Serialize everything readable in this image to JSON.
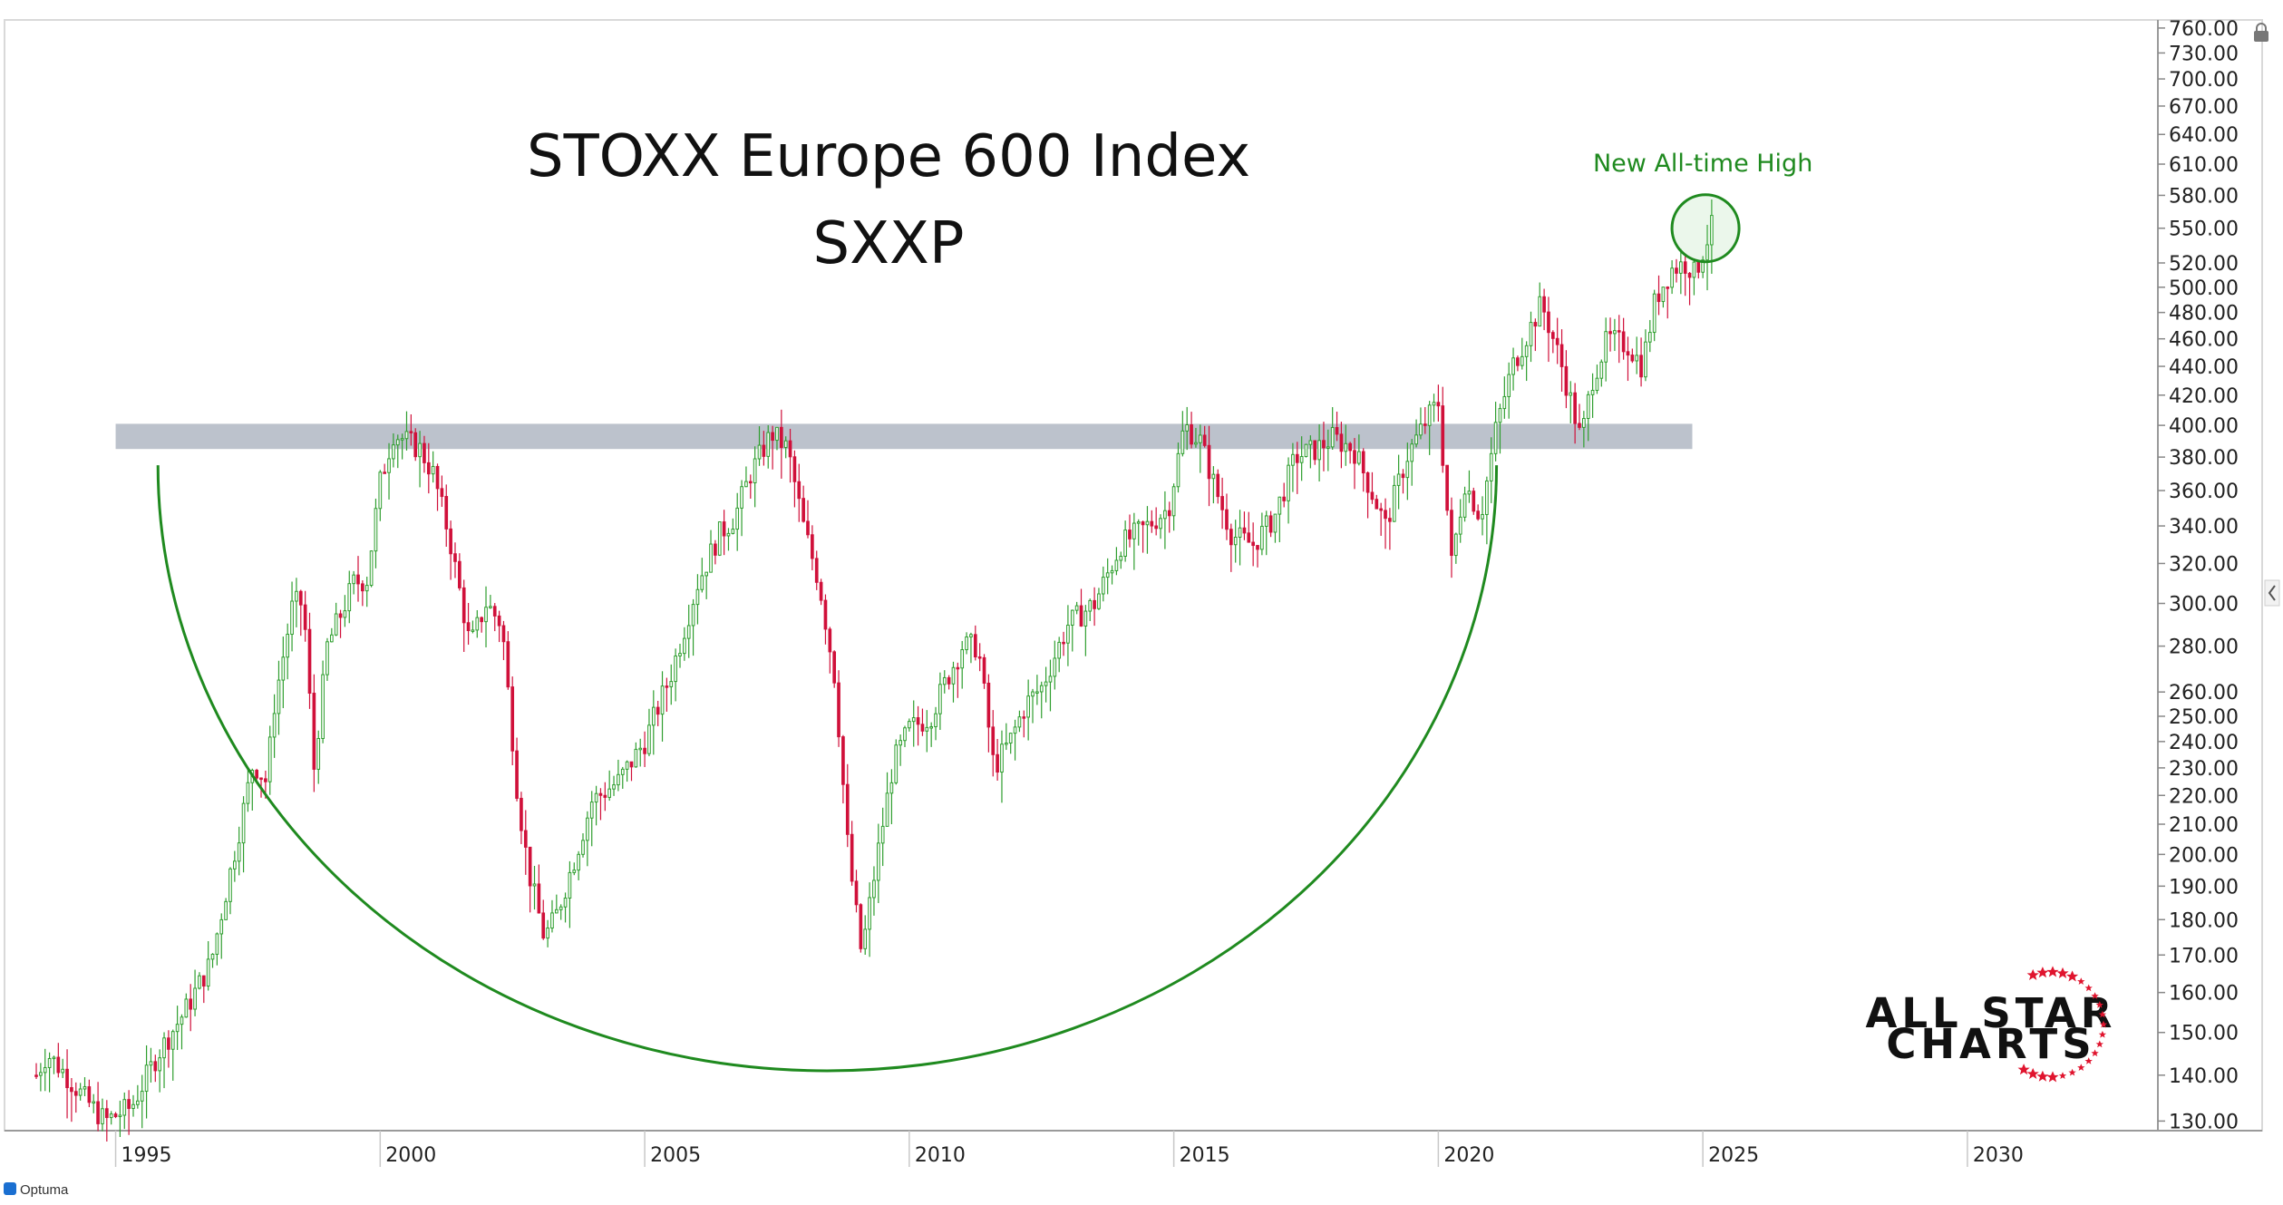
{
  "chart_data": {
    "type": "candlestick",
    "title": "STOXX Europe 600 Index",
    "subtitle": "SXXP",
    "y_scale": "log",
    "ylim": [
      128,
      770
    ],
    "xlim": [
      1992.9,
      2033.6
    ],
    "yticks": [
      130,
      140,
      150,
      160,
      170,
      180,
      190,
      200,
      210,
      220,
      230,
      240,
      250,
      260,
      280,
      300,
      320,
      340,
      360,
      380,
      400,
      420,
      440,
      460,
      480,
      500,
      520,
      550,
      580,
      610,
      640,
      670,
      700,
      730,
      760
    ],
    "ytick_labels": [
      "130.00",
      "140.00",
      "150.00",
      "160.00",
      "170.00",
      "180.00",
      "190.00",
      "200.00",
      "210.00",
      "220.00",
      "230.00",
      "240.00",
      "250.00",
      "260.00",
      "280.00",
      "300.00",
      "320.00",
      "340.00",
      "360.00",
      "380.00",
      "400.00",
      "420.00",
      "440.00",
      "460.00",
      "480.00",
      "500.00",
      "520.00",
      "550.00",
      "580.00",
      "610.00",
      "640.00",
      "670.00",
      "700.00",
      "730.00",
      "760.00"
    ],
    "xticks": [
      1995,
      2000,
      2005,
      2010,
      2015,
      2020,
      2025,
      2030
    ],
    "xtick_labels": [
      "1995",
      "2000",
      "2005",
      "2010",
      "2015",
      "2020",
      "2025",
      "2030"
    ],
    "grid": false,
    "up_color": "#2e9e2e",
    "down_color": "#d0103a",
    "approx_monthly_closes": [
      {
        "x": 1993.5,
        "y": 140
      },
      {
        "x": 1993.7,
        "y": 145
      },
      {
        "x": 1994.0,
        "y": 141
      },
      {
        "x": 1994.4,
        "y": 135
      },
      {
        "x": 1994.8,
        "y": 130
      },
      {
        "x": 1995.3,
        "y": 133
      },
      {
        "x": 1995.8,
        "y": 145
      },
      {
        "x": 1996.3,
        "y": 155
      },
      {
        "x": 1996.8,
        "y": 168
      },
      {
        "x": 1997.3,
        "y": 205
      },
      {
        "x": 1997.6,
        "y": 232
      },
      {
        "x": 1997.85,
        "y": 225
      },
      {
        "x": 1998.0,
        "y": 255
      },
      {
        "x": 1998.35,
        "y": 300
      },
      {
        "x": 1998.55,
        "y": 300
      },
      {
        "x": 1998.75,
        "y": 230
      },
      {
        "x": 1999.0,
        "y": 280
      },
      {
        "x": 1999.5,
        "y": 310
      },
      {
        "x": 1999.75,
        "y": 312
      },
      {
        "x": 2000.0,
        "y": 365
      },
      {
        "x": 2000.25,
        "y": 395
      },
      {
        "x": 2000.5,
        "y": 390
      },
      {
        "x": 2000.75,
        "y": 385
      },
      {
        "x": 2001.0,
        "y": 370
      },
      {
        "x": 2001.3,
        "y": 335
      },
      {
        "x": 2001.7,
        "y": 280
      },
      {
        "x": 2002.0,
        "y": 300
      },
      {
        "x": 2002.3,
        "y": 290
      },
      {
        "x": 2002.6,
        "y": 220
      },
      {
        "x": 2002.8,
        "y": 195
      },
      {
        "x": 2003.1,
        "y": 175
      },
      {
        "x": 2003.3,
        "y": 180
      },
      {
        "x": 2003.7,
        "y": 200
      },
      {
        "x": 2004.0,
        "y": 218
      },
      {
        "x": 2004.5,
        "y": 225
      },
      {
        "x": 2005.0,
        "y": 240
      },
      {
        "x": 2005.5,
        "y": 268
      },
      {
        "x": 2006.0,
        "y": 310
      },
      {
        "x": 2006.4,
        "y": 335
      },
      {
        "x": 2006.7,
        "y": 345
      },
      {
        "x": 2007.0,
        "y": 370
      },
      {
        "x": 2007.4,
        "y": 395
      },
      {
        "x": 2007.7,
        "y": 385
      },
      {
        "x": 2008.0,
        "y": 340
      },
      {
        "x": 2008.3,
        "y": 310
      },
      {
        "x": 2008.6,
        "y": 265
      },
      {
        "x": 2008.85,
        "y": 200
      },
      {
        "x": 2009.1,
        "y": 170
      },
      {
        "x": 2009.4,
        "y": 200
      },
      {
        "x": 2009.7,
        "y": 232
      },
      {
        "x": 2010.0,
        "y": 245
      },
      {
        "x": 2010.4,
        "y": 250
      },
      {
        "x": 2010.7,
        "y": 265
      },
      {
        "x": 2011.0,
        "y": 280
      },
      {
        "x": 2011.3,
        "y": 280
      },
      {
        "x": 2011.6,
        "y": 230
      },
      {
        "x": 2011.9,
        "y": 240
      },
      {
        "x": 2012.2,
        "y": 255
      },
      {
        "x": 2012.5,
        "y": 262
      },
      {
        "x": 2013.0,
        "y": 290
      },
      {
        "x": 2013.5,
        "y": 300
      },
      {
        "x": 2014.0,
        "y": 330
      },
      {
        "x": 2014.5,
        "y": 340
      },
      {
        "x": 2014.9,
        "y": 350
      },
      {
        "x": 2015.2,
        "y": 400
      },
      {
        "x": 2015.5,
        "y": 390
      },
      {
        "x": 2015.8,
        "y": 360
      },
      {
        "x": 2016.1,
        "y": 335
      },
      {
        "x": 2016.5,
        "y": 330
      },
      {
        "x": 2016.9,
        "y": 345
      },
      {
        "x": 2017.3,
        "y": 380
      },
      {
        "x": 2017.7,
        "y": 385
      },
      {
        "x": 2018.0,
        "y": 392
      },
      {
        "x": 2018.4,
        "y": 385
      },
      {
        "x": 2018.8,
        "y": 355
      },
      {
        "x": 2019.0,
        "y": 340
      },
      {
        "x": 2019.4,
        "y": 380
      },
      {
        "x": 2019.8,
        "y": 405
      },
      {
        "x": 2020.0,
        "y": 415
      },
      {
        "x": 2020.25,
        "y": 320
      },
      {
        "x": 2020.5,
        "y": 365
      },
      {
        "x": 2020.8,
        "y": 345
      },
      {
        "x": 2021.1,
        "y": 400
      },
      {
        "x": 2021.4,
        "y": 440
      },
      {
        "x": 2021.7,
        "y": 465
      },
      {
        "x": 2021.95,
        "y": 487
      },
      {
        "x": 2022.3,
        "y": 445
      },
      {
        "x": 2022.7,
        "y": 390
      },
      {
        "x": 2022.9,
        "y": 430
      },
      {
        "x": 2023.2,
        "y": 460
      },
      {
        "x": 2023.6,
        "y": 455
      },
      {
        "x": 2023.85,
        "y": 440
      },
      {
        "x": 2024.1,
        "y": 490
      },
      {
        "x": 2024.4,
        "y": 515
      },
      {
        "x": 2024.7,
        "y": 520
      },
      {
        "x": 2024.85,
        "y": 510
      },
      {
        "x": 2025.0,
        "y": 530
      },
      {
        "x": 2025.2,
        "y": 555
      }
    ],
    "annotations": [
      {
        "type": "resistance-band",
        "y_from": 385,
        "y_to": 401,
        "x_from": 1995.0,
        "x_to": 2024.8,
        "color": "#b8bfc9"
      },
      {
        "type": "cup-arc",
        "color": "#1f8a1f",
        "x_left": 1995.8,
        "x_right": 2021.1,
        "y_top": 375,
        "y_bottom": 141
      },
      {
        "type": "highlight-circle",
        "x": 2025.05,
        "y": 550,
        "color": "#1f8a1f"
      },
      {
        "type": "text",
        "text": "New All-time High",
        "x": 2025.0,
        "y": 603
      }
    ]
  },
  "title_lines": [
    "STOXX Europe 600 Index",
    "SXXP"
  ],
  "annotation_label": "New All-time High",
  "logo": {
    "line1": "ALL STAR",
    "line2": "CHARTS",
    "star_color": "#e0142e"
  },
  "footer_brand": "Optuma",
  "scroll_arrow_glyph": "‹",
  "lock_glyph": "🔒"
}
